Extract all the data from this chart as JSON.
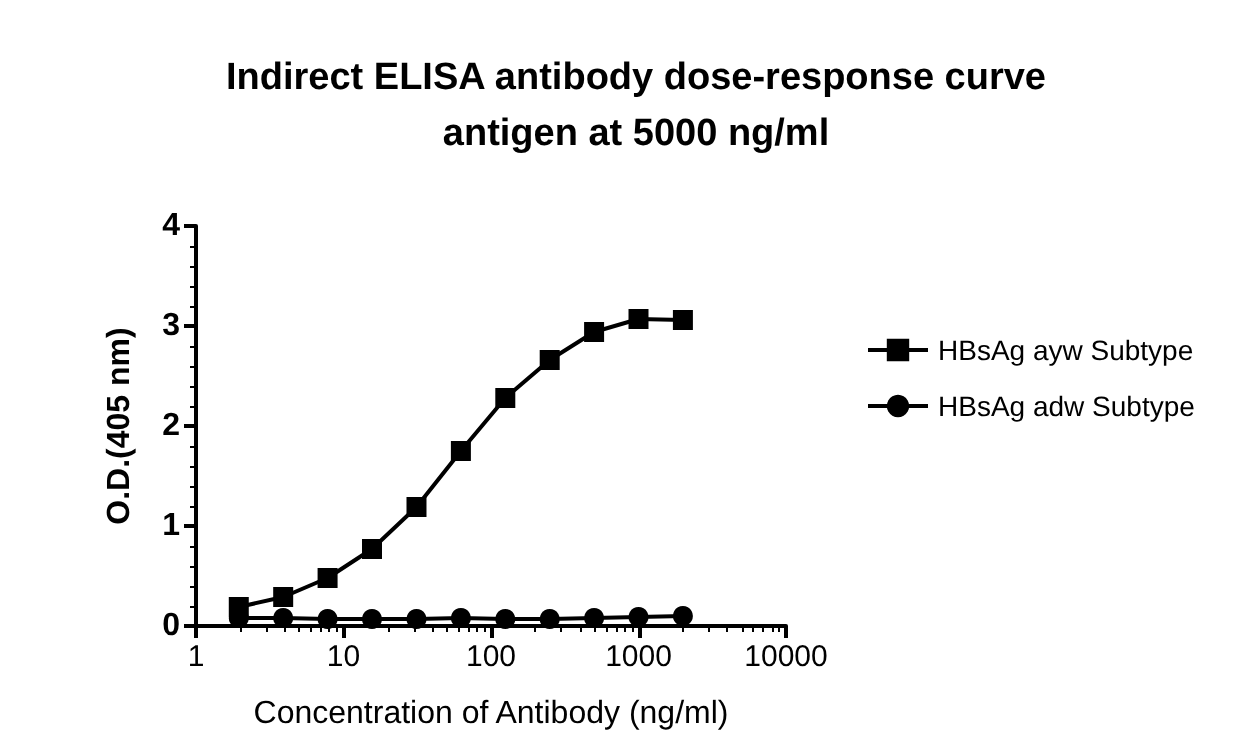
{
  "chart_data": {
    "type": "line",
    "title": "Indirect ELISA antibody dose-response curve\nantigen at 5000 ng/ml",
    "xlabel": "Concentration of Antibody (ng/ml)",
    "ylabel": "O.D.(405 nm)",
    "log": "x",
    "xlim": [
      1,
      10000
    ],
    "xticks": [
      1,
      10,
      100,
      1000,
      10000
    ],
    "ylim": [
      0,
      4
    ],
    "yticks": [
      0,
      1,
      2,
      3,
      4
    ],
    "grid": false,
    "legend": "right",
    "line_style": "solid",
    "x": [
      1.95,
      3.9,
      7.8,
      15.6,
      31.25,
      62.5,
      125,
      250,
      500,
      1000,
      2000
    ],
    "series": [
      {
        "name": "HBsAg ayw Subtype",
        "color": "#000000",
        "marker": "square",
        "values": [
          0.19,
          0.29,
          0.48,
          0.77,
          1.19,
          1.75,
          2.28,
          2.66,
          2.94,
          3.07,
          3.06
        ]
      },
      {
        "name": "HBsAg adw Subtype",
        "color": "#000000",
        "marker": "circle",
        "values": [
          0.08,
          0.08,
          0.07,
          0.07,
          0.07,
          0.08,
          0.07,
          0.07,
          0.08,
          0.09,
          0.1
        ]
      }
    ]
  }
}
